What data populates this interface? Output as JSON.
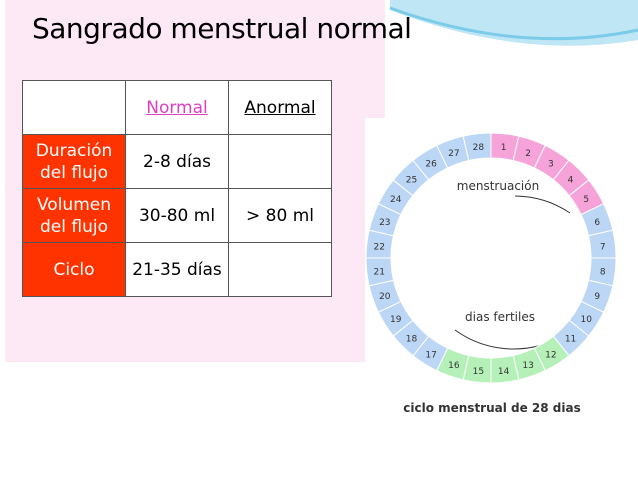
{
  "title": "Sangrado menstrual normal",
  "table": {
    "header": [
      "Normal",
      "Anormal"
    ],
    "rows": [
      {
        "label": "Duración del flujo",
        "normal": "2-8 días"
      },
      {
        "label": "Volumen del flujo",
        "normal": "30-80 ml",
        "anormal": "> 80 ml"
      },
      {
        "label": "Ciclo",
        "normal": "21-35 días"
      }
    ]
  },
  "cycle": {
    "days": [
      1,
      2,
      3,
      4,
      5,
      6,
      7,
      8,
      9,
      10,
      11,
      12,
      13,
      14,
      15,
      16,
      17,
      18,
      19,
      20,
      21,
      22,
      23,
      24,
      25,
      26,
      27,
      28
    ],
    "colors": [
      "#f5a3d8",
      "#f5a3d8",
      "#f5a3d8",
      "#f5a3d8",
      "#f5a3d8",
      "#bcd6f5",
      "#bcd6f5",
      "#bcd6f5",
      "#bcd6f5",
      "#bcd6f5",
      "#bcd6f5",
      "#b5f0b8",
      "#b5f0b8",
      "#b5f0b8",
      "#b5f0b8",
      "#b5f0b8",
      "#bcd6f5",
      "#bcd6f5",
      "#bcd6f5",
      "#bcd6f5",
      "#bcd6f5",
      "#bcd6f5",
      "#bcd6f5",
      "#bcd6f5",
      "#bcd6f5",
      "#bcd6f5",
      "#bcd6f5",
      "#bcd6f5"
    ],
    "menstruation_label": "menstruación",
    "fertile_label": "dias fertiles",
    "caption": "ciclo menstrual de 28 dias"
  }
}
